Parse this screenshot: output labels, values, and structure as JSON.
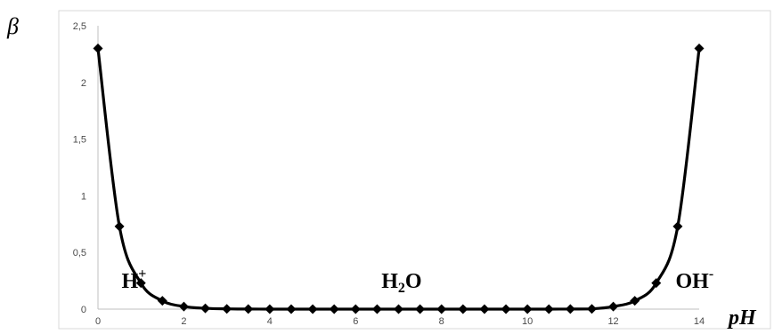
{
  "chart_data": {
    "type": "line",
    "title": "",
    "ylabel": "β",
    "xlabel": "pH",
    "xlim": [
      0,
      14
    ],
    "ylim": [
      0,
      2.5
    ],
    "x_ticks": [
      0,
      2,
      4,
      6,
      8,
      10,
      12,
      14
    ],
    "y_ticks": [
      0,
      0.5,
      1,
      1.5,
      2,
      2.5
    ],
    "x_tick_labels": [
      "0",
      "2",
      "4",
      "6",
      "8",
      "10",
      "12",
      "14"
    ],
    "y_tick_labels": [
      "0",
      "0,5",
      "1",
      "1,5",
      "2",
      "2,5"
    ],
    "grid": false,
    "marker": "diamond",
    "line_color": "#000000",
    "series": [
      {
        "x": [
          0,
          0.5,
          1,
          1.5,
          2,
          2.5,
          3,
          3.5,
          4,
          4.5,
          5,
          5.5,
          6,
          6.5,
          7,
          7.5,
          8,
          8.5,
          9,
          9.5,
          10,
          10.5,
          11,
          11.5,
          12,
          12.5,
          13,
          13.5,
          14
        ],
        "values": [
          2.3,
          0.73,
          0.23,
          0.073,
          0.023,
          0.0073,
          0.0023,
          0.0007,
          0.0002,
          0.0001,
          0.0,
          0.0,
          0.0,
          0.0,
          0.0,
          0.0,
          0.0,
          0.0,
          0.0,
          0.0,
          0.0001,
          0.0002,
          0.0007,
          0.0023,
          0.023,
          0.073,
          0.23,
          0.73,
          2.3
        ]
      }
    ],
    "annotations": [
      {
        "base": "H",
        "sup": "+",
        "sub": "",
        "tail": "",
        "x": 0.55,
        "y": 0.19
      },
      {
        "base": "H",
        "sup": "",
        "sub": "2",
        "tail": "O",
        "x": 6.6,
        "y": 0.19
      },
      {
        "base": "OH",
        "sup": "-",
        "sub": "",
        "tail": "",
        "x": 13.45,
        "y": 0.19
      }
    ]
  }
}
